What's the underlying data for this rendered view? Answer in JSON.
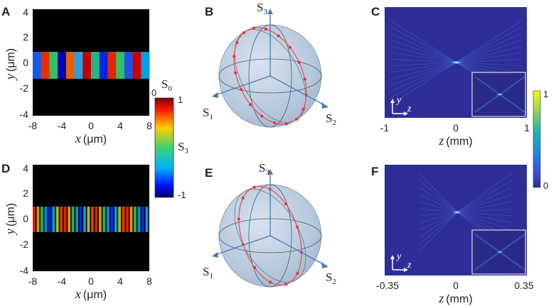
{
  "panels": {
    "A": {
      "label": "A",
      "x_ticks": [
        "-8",
        "-4",
        "0",
        "4",
        "8"
      ],
      "y_ticks": [
        "4",
        "2",
        "0",
        "-2",
        "-4"
      ],
      "xlabel_var": "x",
      "xlabel_unit": "(μm)",
      "ylabel_var": "y",
      "ylabel_unit": "(μm)"
    },
    "D": {
      "label": "D",
      "x_ticks": [
        "-8",
        "-4",
        "0",
        "4",
        "8"
      ],
      "y_ticks": [
        "4",
        "2",
        "0",
        "-2",
        "-4"
      ],
      "xlabel_var": "x",
      "xlabel_unit": "(μm)",
      "ylabel_var": "y",
      "ylabel_unit": "(μm)"
    },
    "B": {
      "label": "B",
      "s1": "S",
      "s1_sub": "1",
      "s2": "S",
      "s2_sub": "2",
      "s3": "S",
      "s3_sub": "3"
    },
    "E": {
      "label": "E",
      "s1": "S",
      "s1_sub": "1",
      "s2": "S",
      "s2_sub": "2",
      "s3": "S",
      "s3_sub": "3"
    },
    "C": {
      "label": "C",
      "x_ticks": [
        "-1",
        "0",
        "1"
      ],
      "xlabel_var": "z",
      "xlabel_unit": "(mm)",
      "inset_y": "y",
      "inset_z": "z"
    },
    "F": {
      "label": "F",
      "x_ticks": [
        "-0.35",
        "0",
        "0.35"
      ],
      "xlabel_var": "z",
      "xlabel_unit": "(mm)",
      "inset_y": "y",
      "inset_z": "z"
    }
  },
  "colorbar_stokes": {
    "title": "S",
    "title_sub": "0",
    "min_label": "0",
    "max_label": "1",
    "mid": "S",
    "mid_sub": "3",
    "bottom": "-1"
  },
  "colorbar_intensity": {
    "max_label": "1",
    "min_label": "0"
  },
  "colors": {
    "sphere": "#b9cce2",
    "trace": "#e8505b",
    "axis_arrow": "#4a7ab5",
    "field_bg": "#2e2e98"
  }
}
